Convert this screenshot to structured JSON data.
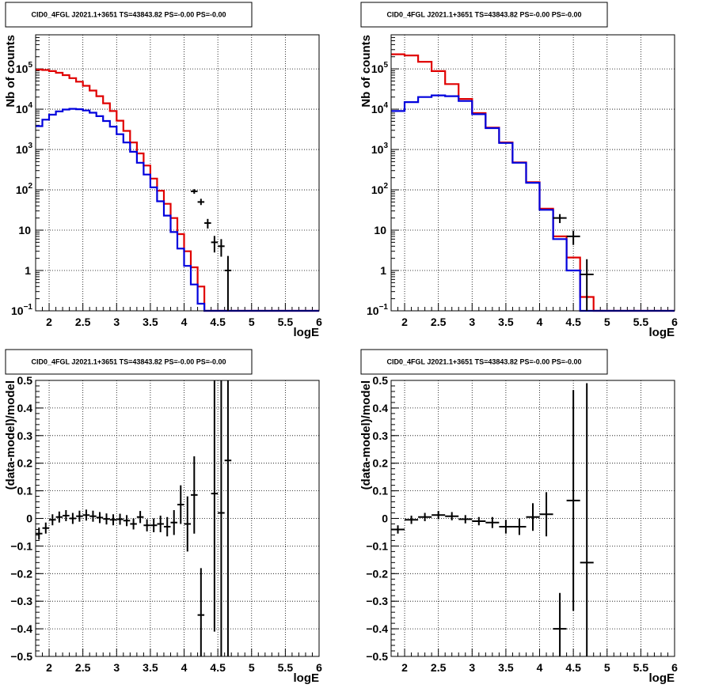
{
  "chart_data": [
    {
      "id": "pad1",
      "type": "line",
      "title": "CID0_4FGL J2021.1+3651 TS=43843.82 PS=-0.00 PS=-0.00",
      "xlabel": "logE",
      "ylabel": "Nb of counts",
      "xlim": [
        1.8,
        6.0
      ],
      "ylim": [
        0.1,
        700000
      ],
      "y_scale": "log",
      "grid": true,
      "x_ticks": [
        "2",
        "2.5",
        "3",
        "3.5",
        "4",
        "4.5",
        "5",
        "5.5",
        "6"
      ],
      "y_ticks": [
        {
          "value": 0.1,
          "label": "10",
          "exp": "−1"
        },
        {
          "value": 1,
          "label": "1",
          "exp": ""
        },
        {
          "value": 10,
          "label": "10",
          "exp": ""
        },
        {
          "value": 100,
          "label": "10",
          "exp": "2"
        },
        {
          "value": 1000,
          "label": "10",
          "exp": "3"
        },
        {
          "value": 10000,
          "label": "10",
          "exp": "4"
        },
        {
          "value": 100000,
          "label": "10",
          "exp": "5"
        }
      ],
      "bin_edges": [
        1.8,
        1.9,
        2.0,
        2.1,
        2.2,
        2.3,
        2.4,
        2.5,
        2.6,
        2.7,
        2.8,
        2.9,
        3.0,
        3.1,
        3.2,
        3.3,
        3.4,
        3.5,
        3.6,
        3.7,
        3.8,
        3.9,
        4.0,
        4.1,
        4.2,
        4.3,
        4.4,
        4.5,
        4.6,
        4.7,
        4.8,
        4.9,
        5.0,
        5.1,
        5.2,
        5.3,
        5.4,
        5.5,
        5.6,
        5.7,
        5.8,
        5.9,
        6.0
      ],
      "series": [
        {
          "color": "#e00000",
          "values": [
            96000,
            94000,
            88000,
            80000,
            70000,
            59000,
            48000,
            38000,
            29000,
            21000,
            14000,
            9000,
            5200,
            2900,
            1500,
            800,
            400,
            190,
            95,
            45,
            20,
            8,
            3,
            1.2,
            0.4,
            0.1,
            0.1,
            0.1,
            0.1,
            0.1,
            0.1,
            0.1,
            0.1,
            0.1,
            0.1,
            0.1,
            0.1,
            0.1,
            0.1,
            0.1,
            0.1,
            0.1
          ]
        },
        {
          "color": "#0000dd",
          "values": [
            3800,
            5500,
            7300,
            8800,
            9800,
            10200,
            10000,
            9300,
            8200,
            6700,
            5100,
            3700,
            2400,
            1500,
            880,
            470,
            240,
            115,
            52,
            23,
            9,
            3.5,
            1.3,
            0.45,
            0.15,
            0.1,
            0.1,
            0.1,
            0.1,
            0.1,
            0.1,
            0.1,
            0.1,
            0.1,
            0.1,
            0.1,
            0.1,
            0.1,
            0.1,
            0.1,
            0.1,
            0.1
          ]
        }
      ],
      "data_points": [
        {
          "x": 4.15,
          "y": 92,
          "ylo": 80,
          "yhi": 104,
          "xerr": 0.05
        },
        {
          "x": 4.25,
          "y": 50,
          "ylo": 42,
          "yhi": 60,
          "xerr": 0.05
        },
        {
          "x": 4.35,
          "y": 15,
          "ylo": 11,
          "yhi": 19,
          "xerr": 0.05
        },
        {
          "x": 4.45,
          "y": 5,
          "ylo": 2.8,
          "yhi": 7.2,
          "xerr": 0.05
        },
        {
          "x": 4.55,
          "y": 4,
          "ylo": 2.2,
          "yhi": 6.0,
          "xerr": 0.05
        },
        {
          "x": 4.65,
          "y": 1,
          "ylo": 0.1,
          "yhi": 2.3,
          "xerr": 0.05
        }
      ]
    },
    {
      "id": "pad2",
      "type": "line",
      "title": "CID0_4FGL J2021.1+3651 TS=43843.82 PS=-0.00 PS=-0.00",
      "xlabel": "logE",
      "ylabel": "Nb of counts",
      "xlim": [
        1.8,
        6.0
      ],
      "ylim": [
        0.1,
        700000
      ],
      "y_scale": "log",
      "grid": true,
      "x_ticks": [
        "2",
        "2.5",
        "3",
        "3.5",
        "4",
        "4.5",
        "5",
        "5.5",
        "6"
      ],
      "y_ticks": [
        {
          "value": 0.1,
          "label": "10",
          "exp": "−1"
        },
        {
          "value": 1,
          "label": "1",
          "exp": ""
        },
        {
          "value": 10,
          "label": "10",
          "exp": ""
        },
        {
          "value": 100,
          "label": "10",
          "exp": "2"
        },
        {
          "value": 1000,
          "label": "10",
          "exp": "3"
        },
        {
          "value": 10000,
          "label": "10",
          "exp": "4"
        },
        {
          "value": 100000,
          "label": "10",
          "exp": "5"
        }
      ],
      "bin_edges": [
        1.8,
        2.0,
        2.2,
        2.4,
        2.6,
        2.8,
        3.0,
        3.2,
        3.4,
        3.6,
        3.8,
        4.0,
        4.2,
        4.4,
        4.6,
        4.8,
        5.0,
        5.2,
        5.4,
        5.6,
        5.8,
        6.0
      ],
      "series": [
        {
          "color": "#e00000",
          "values": [
            230000,
            215000,
            150000,
            88000,
            42000,
            18000,
            8000,
            3500,
            1500,
            480,
            155,
            34,
            7,
            2.1,
            0.22,
            0.1,
            0.1,
            0.1,
            0.1,
            0.1,
            0.1
          ]
        },
        {
          "color": "#0000dd",
          "values": [
            9000,
            15000,
            20000,
            22000,
            21000,
            16000,
            7500,
            3400,
            1450,
            470,
            150,
            32,
            6,
            1.0,
            0.1,
            0.1,
            0.1,
            0.1,
            0.1,
            0.1,
            0.1
          ]
        }
      ],
      "data_points": [
        {
          "x": 4.3,
          "y": 20,
          "ylo": 15,
          "yhi": 25,
          "xerr": 0.1
        },
        {
          "x": 4.5,
          "y": 7,
          "ylo": 4.3,
          "yhi": 9.7,
          "xerr": 0.1
        },
        {
          "x": 4.7,
          "y": 0.8,
          "ylo": 0.1,
          "yhi": 1.9,
          "xerr": 0.1
        }
      ]
    },
    {
      "id": "pad3",
      "type": "scatter",
      "title": "CID0_4FGL J2021.1+3651 TS=43843.82 PS=-0.00 PS=-0.00",
      "xlabel": "logE",
      "ylabel": "(data-model)/model",
      "xlim": [
        1.8,
        6.0
      ],
      "ylim": [
        -0.5,
        0.5
      ],
      "y_scale": "linear",
      "grid": true,
      "x_ticks": [
        "2",
        "2.5",
        "3",
        "3.5",
        "4",
        "4.5",
        "5",
        "5.5",
        "6"
      ],
      "y_ticks": [
        "−0.5",
        "−0.4",
        "−0.3",
        "−0.2",
        "−0.1",
        "0",
        "0.1",
        "0.2",
        "0.3",
        "0.4",
        "0.5"
      ],
      "points": [
        {
          "x": 1.85,
          "y": -0.055,
          "err": 0.022,
          "xerr": 0.05
        },
        {
          "x": 1.95,
          "y": -0.035,
          "err": 0.02,
          "xerr": 0.05
        },
        {
          "x": 2.05,
          "y": -0.005,
          "err": 0.02,
          "xerr": 0.05
        },
        {
          "x": 2.15,
          "y": 0.005,
          "err": 0.02,
          "xerr": 0.05
        },
        {
          "x": 2.25,
          "y": 0.01,
          "err": 0.02,
          "xerr": 0.05
        },
        {
          "x": 2.35,
          "y": 0.0,
          "err": 0.02,
          "xerr": 0.05
        },
        {
          "x": 2.45,
          "y": 0.008,
          "err": 0.02,
          "xerr": 0.05
        },
        {
          "x": 2.55,
          "y": 0.012,
          "err": 0.02,
          "xerr": 0.05
        },
        {
          "x": 2.65,
          "y": 0.008,
          "err": 0.02,
          "xerr": 0.05
        },
        {
          "x": 2.75,
          "y": 0.003,
          "err": 0.02,
          "xerr": 0.05
        },
        {
          "x": 2.85,
          "y": -0.002,
          "err": 0.02,
          "xerr": 0.05
        },
        {
          "x": 2.95,
          "y": -0.005,
          "err": 0.02,
          "xerr": 0.05
        },
        {
          "x": 3.05,
          "y": -0.003,
          "err": 0.02,
          "xerr": 0.05
        },
        {
          "x": 3.15,
          "y": -0.008,
          "err": 0.02,
          "xerr": 0.05
        },
        {
          "x": 3.25,
          "y": -0.02,
          "err": 0.02,
          "xerr": 0.05
        },
        {
          "x": 3.35,
          "y": 0.005,
          "err": 0.022,
          "xerr": 0.05
        },
        {
          "x": 3.45,
          "y": -0.025,
          "err": 0.022,
          "xerr": 0.05
        },
        {
          "x": 3.55,
          "y": -0.025,
          "err": 0.025,
          "xerr": 0.05
        },
        {
          "x": 3.65,
          "y": -0.02,
          "err": 0.03,
          "xerr": 0.05
        },
        {
          "x": 3.75,
          "y": -0.03,
          "err": 0.035,
          "xerr": 0.05
        },
        {
          "x": 3.85,
          "y": -0.015,
          "err": 0.045,
          "xerr": 0.05
        },
        {
          "x": 3.95,
          "y": 0.05,
          "err": 0.07,
          "xerr": 0.05
        },
        {
          "x": 4.05,
          "y": -0.02,
          "err": 0.1,
          "xerr": 0.05
        },
        {
          "x": 4.15,
          "y": 0.085,
          "err": 0.14,
          "xerr": 0.05
        },
        {
          "x": 4.25,
          "y": -0.35,
          "err": 0.17,
          "xerr": 0.05
        },
        {
          "x": 4.45,
          "y": 0.09,
          "err": 0.5,
          "xerr": 0.05
        },
        {
          "x": 4.55,
          "y": 0.02,
          "err": 0.55,
          "xerr": 0.05
        },
        {
          "x": 4.65,
          "y": 0.21,
          "err": 0.75,
          "xerr": 0.05
        }
      ]
    },
    {
      "id": "pad4",
      "type": "scatter",
      "title": "CID0_4FGL J2021.1+3651 TS=43843.82 PS=-0.00 PS=-0.00",
      "xlabel": "logE",
      "ylabel": "(data-model)/model",
      "xlim": [
        1.8,
        6.0
      ],
      "ylim": [
        -0.5,
        0.5
      ],
      "y_scale": "linear",
      "grid": true,
      "x_ticks": [
        "2",
        "2.5",
        "3",
        "3.5",
        "4",
        "4.5",
        "5",
        "5.5",
        "6"
      ],
      "y_ticks": [
        "−0.5",
        "−0.4",
        "−0.3",
        "−0.2",
        "−0.1",
        "0",
        "0.1",
        "0.2",
        "0.3",
        "0.4",
        "0.5"
      ],
      "points": [
        {
          "x": 1.9,
          "y": -0.04,
          "err": 0.015,
          "xerr": 0.1
        },
        {
          "x": 2.1,
          "y": -0.005,
          "err": 0.015,
          "xerr": 0.1
        },
        {
          "x": 2.3,
          "y": 0.005,
          "err": 0.015,
          "xerr": 0.1
        },
        {
          "x": 2.5,
          "y": 0.012,
          "err": 0.015,
          "xerr": 0.1
        },
        {
          "x": 2.7,
          "y": 0.008,
          "err": 0.015,
          "xerr": 0.1
        },
        {
          "x": 2.9,
          "y": -0.003,
          "err": 0.015,
          "xerr": 0.1
        },
        {
          "x": 3.1,
          "y": -0.01,
          "err": 0.015,
          "xerr": 0.1
        },
        {
          "x": 3.3,
          "y": -0.015,
          "err": 0.02,
          "xerr": 0.1
        },
        {
          "x": 3.5,
          "y": -0.03,
          "err": 0.025,
          "xerr": 0.1
        },
        {
          "x": 3.7,
          "y": -0.03,
          "err": 0.03,
          "xerr": 0.1
        },
        {
          "x": 3.9,
          "y": 0.005,
          "err": 0.05,
          "xerr": 0.1
        },
        {
          "x": 4.1,
          "y": 0.015,
          "err": 0.08,
          "xerr": 0.1
        },
        {
          "x": 4.3,
          "y": -0.4,
          "err": 0.13,
          "xerr": 0.1
        },
        {
          "x": 4.5,
          "y": 0.065,
          "err": 0.4,
          "xerr": 0.1
        },
        {
          "x": 4.7,
          "y": -0.16,
          "err": 0.65,
          "xerr": 0.1
        }
      ]
    }
  ]
}
